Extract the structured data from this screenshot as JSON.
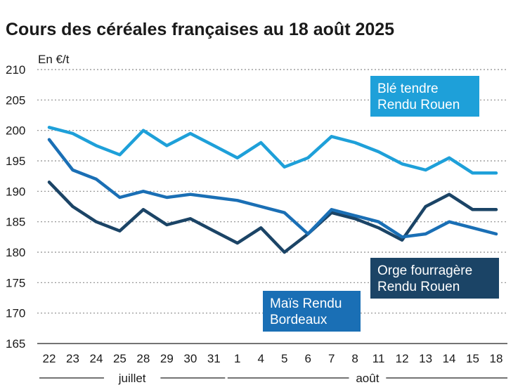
{
  "chart_data": {
    "type": "line",
    "title": "Cours des céréales françaises au 18 août 2025",
    "ylabel": "En €/t",
    "ylim": [
      165,
      210
    ],
    "yticks": [
      165,
      170,
      175,
      180,
      185,
      190,
      195,
      200,
      205,
      210
    ],
    "categories": [
      "22",
      "23",
      "24",
      "25",
      "28",
      "29",
      "30",
      "31",
      "1",
      "4",
      "5",
      "6",
      "7",
      "8",
      "11",
      "12",
      "13",
      "14",
      "15",
      "18"
    ],
    "month_groups": [
      {
        "label": "juillet",
        "start": 0,
        "end": 7
      },
      {
        "label": "août",
        "start": 8,
        "end": 19
      }
    ],
    "grid": true,
    "series": [
      {
        "name": "Blé tendre Rendu Rouen",
        "label_lines": [
          "Blé tendre",
          "Rendu Rouen"
        ],
        "color": "#1ea0d9",
        "values": [
          200.5,
          199.5,
          197.5,
          196,
          200,
          197.5,
          199.5,
          197.5,
          195.5,
          198,
          194,
          195.5,
          199,
          198,
          196.5,
          194.5,
          193.5,
          195.5,
          193,
          193
        ]
      },
      {
        "name": "Maïs Rendu Bordeaux",
        "label_lines": [
          "Maïs Rendu",
          "Bordeaux"
        ],
        "color": "#1a6fb5",
        "values": [
          198.5,
          193.5,
          192,
          189,
          190,
          189,
          189.5,
          189,
          188.5,
          187.5,
          186.5,
          183,
          187,
          186,
          185,
          182.5,
          183,
          185,
          184,
          183
        ]
      },
      {
        "name": "Orge fourragère Rendu Rouen",
        "label_lines": [
          "Orge fourragère",
          "Rendu Rouen"
        ],
        "color": "#1b4466",
        "values": [
          191.5,
          187.5,
          185,
          183.5,
          187,
          184.5,
          185.5,
          183.5,
          181.5,
          184,
          180,
          183,
          186.5,
          185.5,
          184,
          182,
          187.5,
          189.5,
          187,
          187
        ]
      }
    ]
  }
}
